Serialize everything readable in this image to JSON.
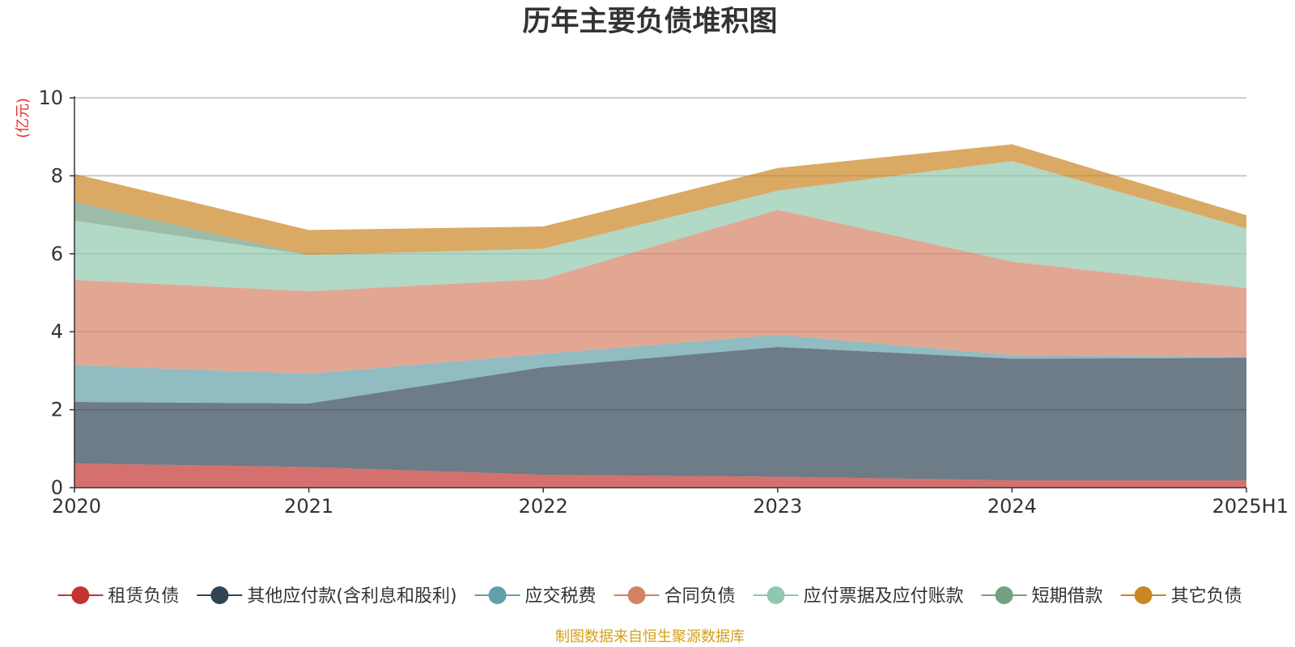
{
  "chart_data": {
    "type": "area",
    "stacked": true,
    "title": "历年主要负债堆积图",
    "unit_label": "(亿元)",
    "x": [
      "2020",
      "2021",
      "2022",
      "2023",
      "2024",
      "2025H1"
    ],
    "ylim": [
      0,
      10
    ],
    "yticks": [
      "0",
      "2",
      "4",
      "6",
      "8",
      "10"
    ],
    "grid": true,
    "legend_position": "bottom",
    "series": [
      {
        "name": "租赁负债",
        "color": "#c23531",
        "values": [
          0.62,
          0.53,
          0.33,
          0.28,
          0.19,
          0.19
        ]
      },
      {
        "name": "其他应付款(含利息和股利)",
        "color": "#2f4554",
        "values": [
          1.58,
          1.63,
          2.76,
          3.33,
          3.12,
          3.14
        ]
      },
      {
        "name": "应交税费",
        "color": "#61a0a8",
        "values": [
          0.94,
          0.76,
          0.34,
          0.31,
          0.09,
          0.03
        ]
      },
      {
        "name": "合同负债",
        "color": "#d48265",
        "values": [
          2.19,
          2.12,
          1.92,
          3.21,
          2.4,
          1.76
        ]
      },
      {
        "name": "应付票据及应付账款",
        "color": "#91c7ae",
        "values": [
          1.52,
          0.93,
          0.78,
          0.49,
          2.58,
          1.53
        ]
      },
      {
        "name": "短期借款",
        "color": "#749f83",
        "values": [
          0.48,
          0.0,
          0.0,
          0.0,
          0.0,
          0.0
        ]
      },
      {
        "name": "其它负债",
        "color": "#ca8622",
        "values": [
          0.72,
          0.64,
          0.57,
          0.58,
          0.43,
          0.34
        ]
      }
    ]
  },
  "footer": {
    "source": "制图数据来自恒生聚源数据库",
    "color": "#d4a017"
  },
  "colors": {
    "axis": "#333333",
    "grid": "#bbbbbb"
  }
}
